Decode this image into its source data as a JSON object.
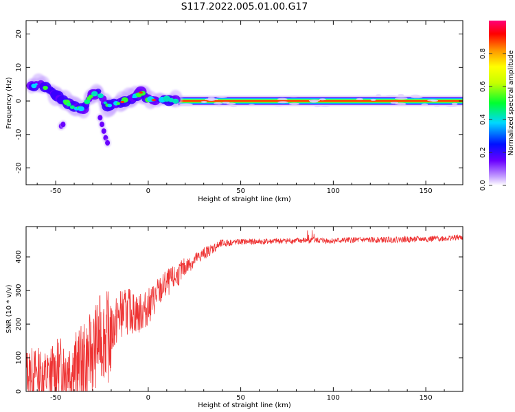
{
  "title": "S117.2022.005.01.00.G17",
  "chart_data": [
    {
      "type": "heatmap",
      "xlabel": "Height of straight line (km)",
      "ylabel": "Frequency (Hz)",
      "xlim": [
        -66,
        170
      ],
      "ylim": [
        -25,
        24
      ],
      "xticks": [
        -50,
        0,
        50,
        100,
        150
      ],
      "yticks": [
        -20,
        -10,
        0,
        10,
        20
      ],
      "grid": false,
      "colorbar": {
        "label": "Normalized spectral amplitude",
        "range": [
          0,
          1
        ],
        "ticks": [
          0.0,
          0.2,
          0.4,
          0.6,
          0.8
        ]
      },
      "ridge": [
        {
          "x": -63,
          "y": 4.5
        },
        {
          "x": -58,
          "y": 5
        },
        {
          "x": -52,
          "y": 3
        },
        {
          "x": -48,
          "y": 1
        },
        {
          "x": -44,
          "y": -0.5
        },
        {
          "x": -40,
          "y": -2
        },
        {
          "x": -35,
          "y": -2.5
        },
        {
          "x": -31,
          "y": 1.5
        },
        {
          "x": -27,
          "y": 2.5
        },
        {
          "x": -22,
          "y": -1.5
        },
        {
          "x": -15,
          "y": -0.5
        },
        {
          "x": -8,
          "y": 1
        },
        {
          "x": -4,
          "y": 2.5
        },
        {
          "x": 0,
          "y": 0.5
        },
        {
          "x": 5,
          "y": 0
        },
        {
          "x": 10,
          "y": 0.5
        },
        {
          "x": 16,
          "y": 0
        },
        {
          "x": 170,
          "y": 0
        }
      ]
    },
    {
      "type": "line",
      "xlabel": "Height of straight line (km)",
      "ylabel": "SNR (10 * v/v)",
      "xlim": [
        -66,
        170
      ],
      "ylim": [
        0,
        490
      ],
      "xticks": [
        -50,
        0,
        50,
        100,
        150
      ],
      "yticks": [
        0,
        100,
        200,
        300,
        400
      ],
      "color": "#ee3333",
      "series": [
        {
          "x": [
            -66,
            -60,
            -55,
            -50,
            -45,
            -40,
            -35,
            -30,
            -25,
            -21,
            -18,
            -15,
            -10,
            -5,
            0,
            5,
            10,
            15,
            20,
            25,
            30,
            35,
            40,
            50,
            60,
            70,
            80,
            90,
            100,
            110,
            120,
            130,
            140,
            150,
            160,
            170
          ],
          "y": [
            60,
            55,
            40,
            60,
            75,
            70,
            85,
            120,
            170,
            160,
            200,
            230,
            240,
            230,
            250,
            290,
            320,
            340,
            370,
            390,
            410,
            425,
            440,
            445,
            445,
            447,
            448,
            449,
            448,
            450,
            450,
            451,
            452,
            453,
            455,
            458
          ]
        }
      ]
    }
  ]
}
